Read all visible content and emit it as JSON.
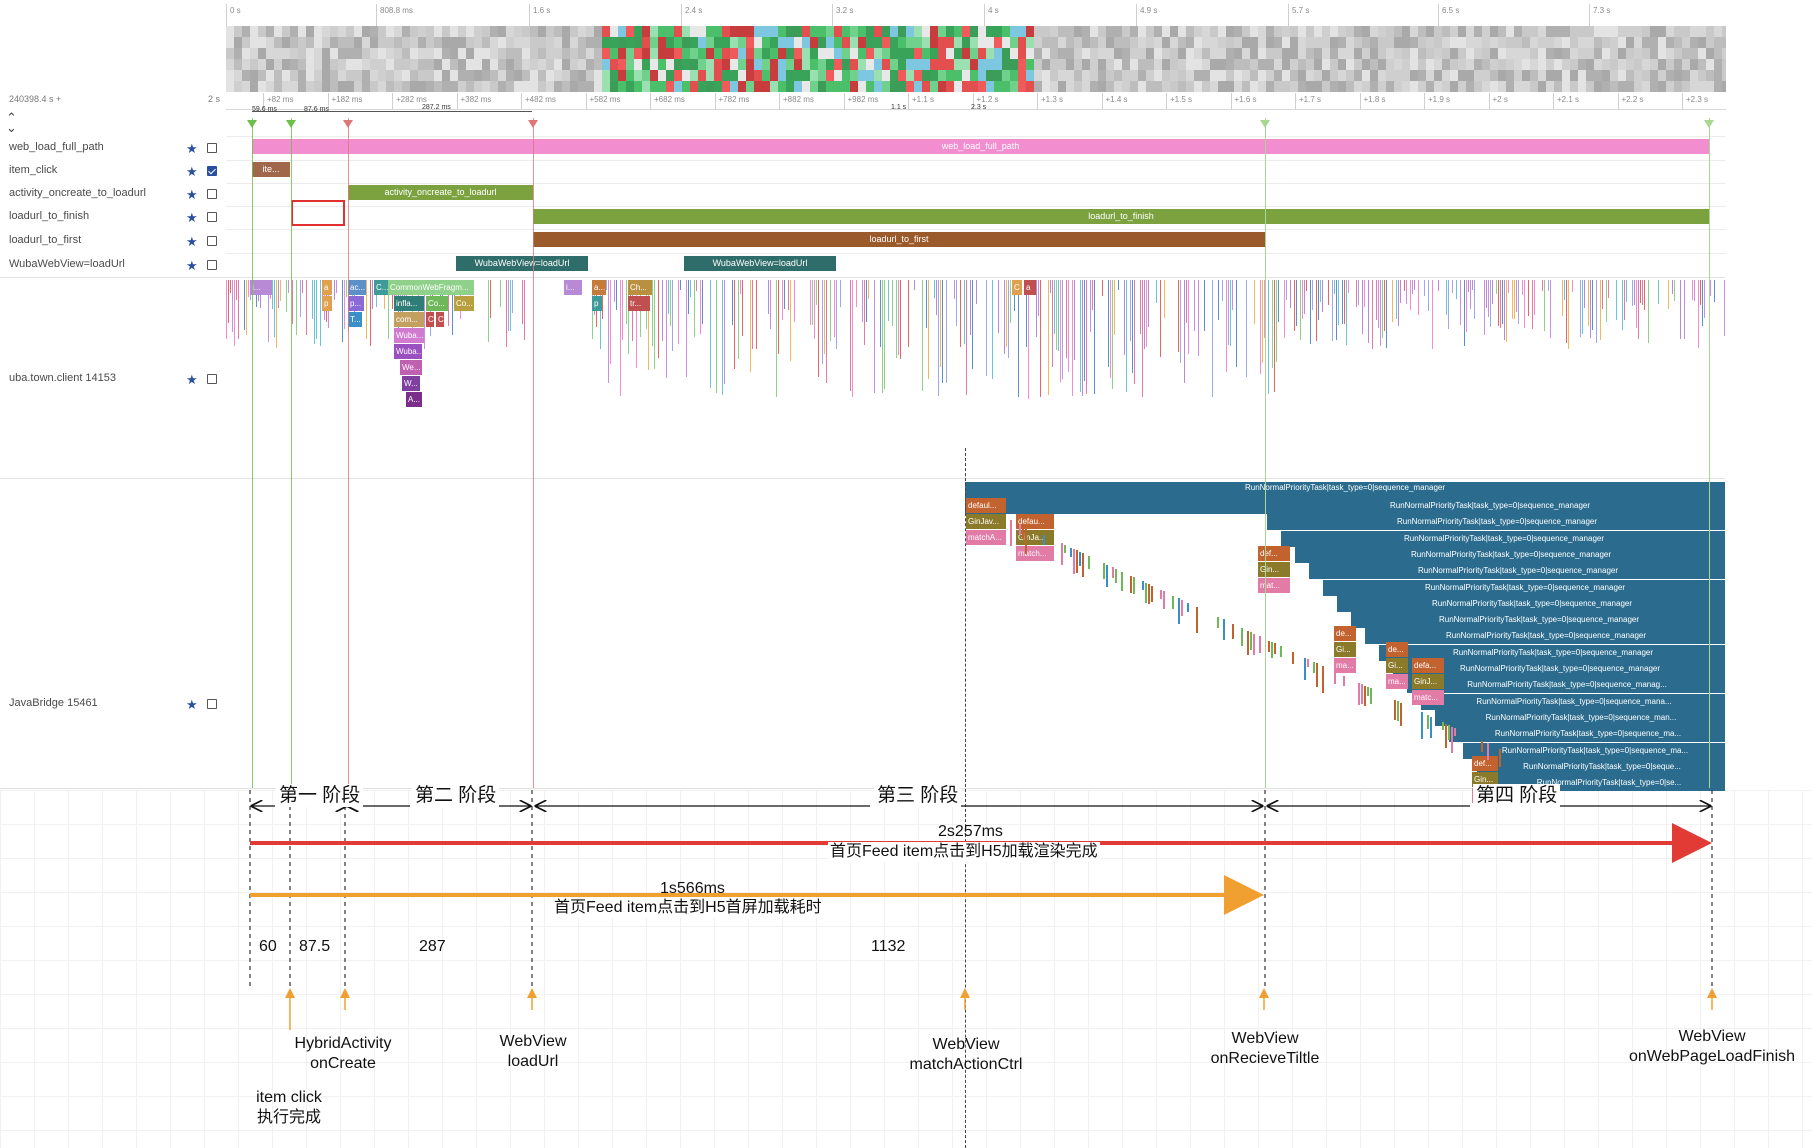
{
  "ruler_top": {
    "ticks": [
      "0 s",
      "808.8 ms",
      "1.6 s",
      "2.4 s",
      "3.2 s",
      "4 s",
      "4.9 s",
      "5.7 s",
      "6.5 s",
      "7.3 s"
    ]
  },
  "ruler_bottom": {
    "origin_label": "240398.4 s +",
    "span_label": "2 s",
    "ticks": [
      "+82 ms",
      "+182 ms",
      "+282 ms",
      "+382 ms",
      "+482 ms",
      "+582 ms",
      "+682 ms",
      "+782 ms",
      "+882 ms",
      "+982 ms",
      "+1.1 s",
      "+1.2 s",
      "+1.3 s",
      "+1.4 s",
      "+1.5 s",
      "+1.6 s",
      "+1.7 s",
      "+1.8 s",
      "+1.9 s",
      "+2 s",
      "+2.1 s",
      "+2.2 s",
      "+2.3 s"
    ],
    "markers": [
      "59.6 ms",
      "87.6 ms",
      "287.2 ms",
      "1.1 s",
      "2.3 s"
    ]
  },
  "collapse_icon": "chevrons-up-down-icon",
  "tracks": [
    {
      "label": "web_load_full_path",
      "pinned": true,
      "checked": false
    },
    {
      "label": "item_click",
      "pinned": true,
      "checked": true
    },
    {
      "label": "activity_oncreate_to_loadurl",
      "pinned": true,
      "checked": false
    },
    {
      "label": "loadurl_to_finish",
      "pinned": true,
      "checked": false
    },
    {
      "label": "loadurl_to_first",
      "pinned": true,
      "checked": false
    },
    {
      "label": "WubaWebView=loadUrl",
      "pinned": true,
      "checked": false
    },
    {
      "label": "uba.town.client 14153",
      "pinned": true,
      "checked": false
    },
    {
      "label": "JavaBridge 15461",
      "pinned": true,
      "checked": false
    }
  ],
  "bars": {
    "web_load_full_path": "web_load_full_path",
    "item_click": "ite...",
    "activity_oncreate_to_loadurl": "activity_oncreate_to_loadurl",
    "loadurl_to_finish": "loadurl_to_finish",
    "loadurl_to_first": "loadurl_to_first",
    "webview_loadurl_1": "WubaWebView=loadUrl",
    "webview_loadurl_2": "WubaWebView=loadUrl"
  },
  "main_thread_slices": [
    "i...",
    "a",
    "p",
    "ac...",
    "p...",
    "T...",
    "C...",
    "CommonWebFragm...",
    "infla...",
    "Co...",
    "Co...",
    "com...",
    "C",
    "C",
    "Wuba...",
    "Wuba...",
    "We...",
    "W...",
    "A...",
    "i...",
    "a...",
    "Ch...",
    "p",
    "tr...",
    "C",
    "a"
  ],
  "javabridge": {
    "top_slice": "RunNormalPriorityTask|task_type=0|sequence_manager",
    "stack": [
      "RunNormalPriorityTask|task_type=0|sequence_manager",
      "RunNormalPriorityTask|task_type=0|sequence_manager",
      "RunNormalPriorityTask|task_type=0|sequence_manager",
      "RunNormalPriorityTask|task_type=0|sequence_manager",
      "RunNormalPriorityTask|task_type=0|sequence_manager",
      "RunNormalPriorityTask|task_type=0|sequence_manager",
      "RunNormalPriorityTask|task_type=0|sequence_manager",
      "RunNormalPriorityTask|task_type=0|sequence_manager",
      "RunNormalPriorityTask|task_type=0|sequence_manager",
      "RunNormalPriorityTask|task_type=0|sequence_manager",
      "RunNormalPriorityTask|task_type=0|sequence_manager",
      "RunNormalPriorityTask|task_type=0|sequence_manag...",
      "RunNormalPriorityTask|task_type=0|sequence_mana...",
      "RunNormalPriorityTask|task_type=0|sequence_man...",
      "RunNormalPriorityTask|task_type=0|sequence_ma...",
      "RunNormalPriorityTask|task_type=0|sequence_ma...",
      "RunNormalPriorityTask|task_type=0|seque...",
      "RunNormalPriorityTask|task_type=0|se..."
    ],
    "side_a": [
      "defaul...",
      "GinJav...",
      "matchA..."
    ],
    "side_b": [
      "defau...",
      "GinJa...",
      "match..."
    ],
    "side_c": [
      "def...",
      "Gin...",
      "mat..."
    ],
    "side_d": [
      "de...",
      "Gi...",
      "ma..."
    ],
    "side_e": [
      "de...",
      "Gi...",
      "ma..."
    ],
    "side_f": [
      "defa...",
      "GinJ...",
      "matc..."
    ],
    "side_g": [
      "def...",
      "Gin...",
      "d"
    ]
  },
  "stages": [
    "第一\n阶段",
    "第二\n阶段",
    "第三\n阶段",
    "第四\n阶段"
  ],
  "spans": {
    "full_value": "2s257ms",
    "full_desc": "首页Feed item点击到H5加载渲染完成",
    "first_value": "1s566ms",
    "first_desc": "首页Feed item点击到H5首屏加载耗时"
  },
  "durations": [
    "60",
    "87.5",
    "287",
    "1132"
  ],
  "events": [
    {
      "name": "item click\n执行完成"
    },
    {
      "name": "HybridActivity\nonCreate"
    },
    {
      "name": "WebView\nloadUrl"
    },
    {
      "name": "WebView\nmatchActionCtrl"
    },
    {
      "name": "WebView\nonRecieveTiltle"
    },
    {
      "name": "WebView\nonWebPageLoadFinish"
    }
  ],
  "colors": {
    "pink": "#f28dcf",
    "brown": "#a0674b",
    "olive": "#7ba23f",
    "sienna": "#9b5a2c",
    "teal": "#2f6d6a",
    "steel": "#2b6c8e",
    "red": "#e23b35",
    "orange": "#f0a030"
  }
}
